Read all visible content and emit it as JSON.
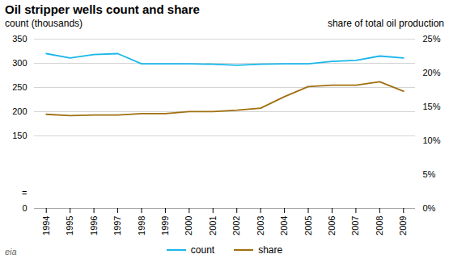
{
  "chart_data": {
    "type": "line",
    "title": "Oil stripper wells count and share",
    "y_label": "count (thousands)",
    "y2_label": "share of total oil production",
    "x": [
      1994,
      1995,
      1996,
      1997,
      1998,
      1999,
      2000,
      2001,
      2002,
      2003,
      2004,
      2005,
      2006,
      2007,
      2008,
      2009
    ],
    "xlim": [
      1993.5,
      2009.5
    ],
    "xticks": [
      1994,
      1995,
      1996,
      1997,
      1998,
      1999,
      2000,
      2001,
      2002,
      2003,
      2004,
      2005,
      2006,
      2007,
      2008,
      2009
    ],
    "series": [
      {
        "name": "count",
        "color": "#1ab7ea",
        "values": [
          320,
          311,
          318,
          320,
          299,
          299,
          299,
          298,
          296,
          298,
          299,
          299,
          304,
          306,
          315,
          311
        ]
      },
      {
        "name": "share",
        "color": "#a07010",
        "axis": "y2",
        "values": [
          13.9,
          13.7,
          13.8,
          13.8,
          14.0,
          14.0,
          14.3,
          14.3,
          14.5,
          14.8,
          16.5,
          18.0,
          18.2,
          18.2,
          18.7,
          17.3
        ]
      }
    ],
    "ylim": [
      0,
      350
    ],
    "yticks": [
      0,
      150,
      200,
      250,
      300,
      350
    ],
    "y2lim": [
      0,
      25
    ],
    "y2ticks": [
      {
        "value": 0,
        "label": "0%"
      },
      {
        "value": 5,
        "label": "5%"
      },
      {
        "value": 10,
        "label": "10%"
      },
      {
        "value": 15,
        "label": "15%"
      },
      {
        "value": 20,
        "label": "20%"
      },
      {
        "value": 25,
        "label": "25%"
      }
    ],
    "grid": true,
    "legend": "bottom",
    "annotations": [
      {
        "text": "="
      },
      {
        "text": "eia"
      }
    ]
  }
}
